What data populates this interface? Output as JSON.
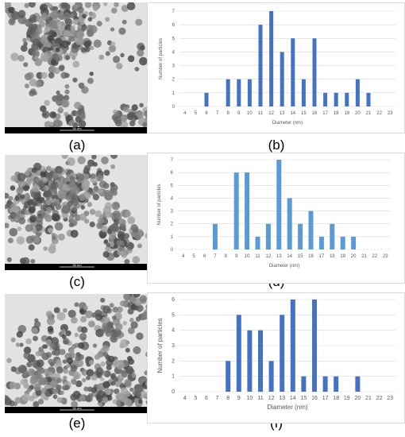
{
  "panel_labels": [
    "(a)",
    "(b)",
    "(c)",
    "(d)",
    "(e)",
    "(f)"
  ],
  "scale_bar_label": "50 nm",
  "colors": {
    "bar_b": "#4472c4",
    "bar_d": "#5b9bd5",
    "bar_f": "#4472c4",
    "grid": "#d9d9d9",
    "tick_text": "#595959"
  },
  "chart_data": [
    {
      "type": "bar",
      "xlabel": "Diameter (nm)",
      "ylabel": "Number of particles",
      "categories": [
        "4",
        "5",
        "6",
        "7",
        "8",
        "9",
        "10",
        "11",
        "12",
        "13",
        "14",
        "15",
        "16",
        "17",
        "18",
        "19",
        "20",
        "21",
        "22",
        "23"
      ],
      "values": [
        0,
        0,
        1,
        0,
        2,
        2,
        2,
        6,
        7,
        4,
        5,
        2,
        5,
        1,
        1,
        1,
        2,
        1,
        0,
        0
      ],
      "ylim": [
        0,
        7
      ],
      "yticks": [
        0,
        1,
        2,
        3,
        4,
        5,
        6,
        7
      ],
      "grid": true
    },
    {
      "type": "bar",
      "xlabel": "Diameter (nm)",
      "ylabel": "Number of particles",
      "categories": [
        "4",
        "5",
        "6",
        "7",
        "8",
        "9",
        "10",
        "11",
        "12",
        "13",
        "14",
        "15",
        "16",
        "17",
        "18",
        "19",
        "20",
        "21",
        "22",
        "23"
      ],
      "values": [
        0,
        0,
        0,
        2,
        0,
        6,
        6,
        1,
        2,
        7,
        4,
        2,
        3,
        1,
        2,
        1,
        1,
        0,
        0,
        0
      ],
      "ylim": [
        0,
        7
      ],
      "yticks": [
        0,
        1,
        2,
        3,
        4,
        5,
        6,
        7
      ],
      "grid": true
    },
    {
      "type": "bar",
      "xlabel": "Diameter (nm)",
      "ylabel": "Number of particles",
      "categories": [
        "4",
        "5",
        "6",
        "7",
        "8",
        "9",
        "10",
        "11",
        "12",
        "13",
        "14",
        "15",
        "16",
        "17",
        "18",
        "19",
        "20",
        "21",
        "22",
        "23"
      ],
      "values": [
        0,
        0,
        0,
        0,
        2,
        5,
        4,
        4,
        2,
        5,
        6,
        1,
        6,
        1,
        1,
        0,
        1,
        0,
        0,
        0
      ],
      "ylim": [
        0,
        6
      ],
      "yticks": [
        0,
        1,
        2,
        3,
        4,
        5,
        6
      ],
      "grid": true
    }
  ]
}
